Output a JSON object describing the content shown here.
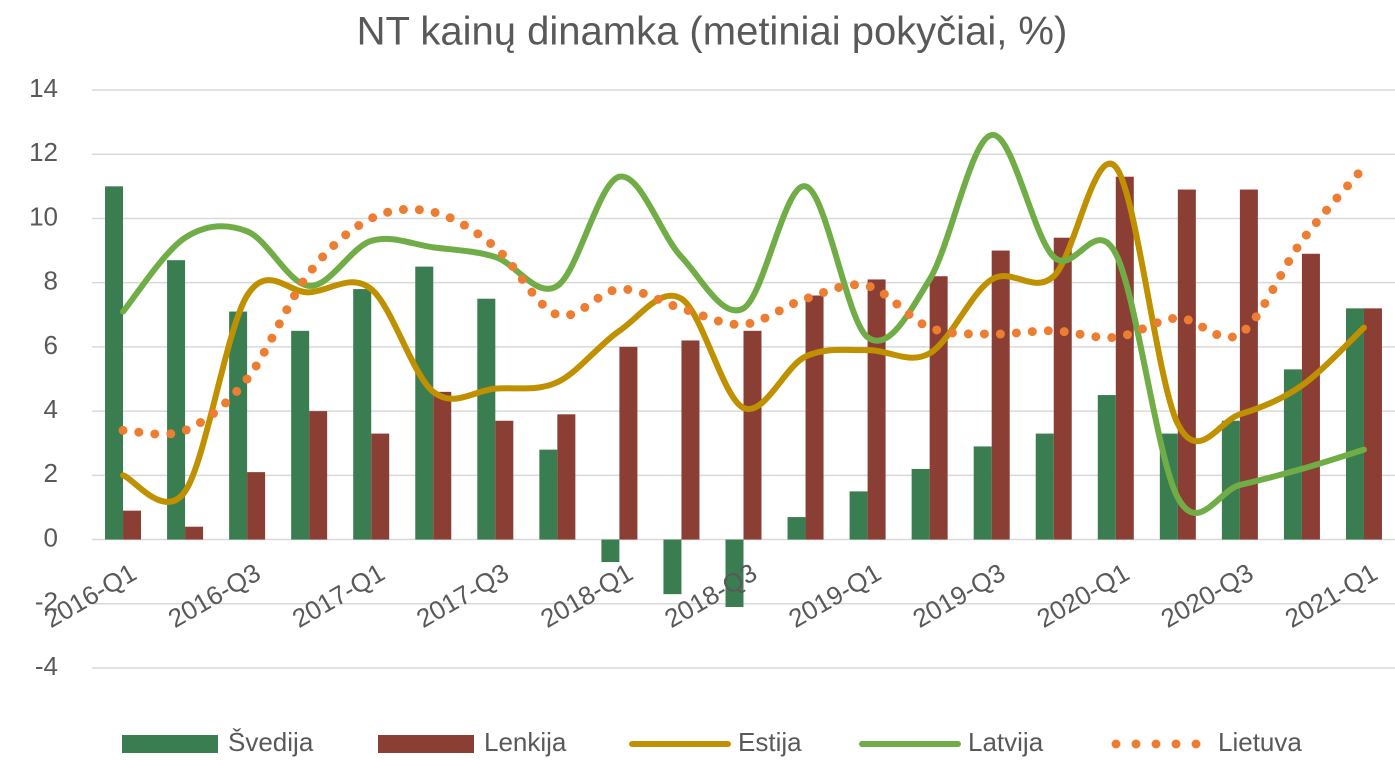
{
  "chart_data": {
    "type": "bar",
    "title": "NT kainų dinamka (metiniai pokyčiai, %)",
    "categories": [
      "2016-Q1",
      null,
      "2016-Q3",
      null,
      "2017-Q1",
      null,
      "2017-Q3",
      null,
      "2018-Q1",
      null,
      "2018-Q3",
      null,
      "2019-Q1",
      null,
      "2019-Q3",
      null,
      "2020-Q1",
      null,
      "2020-Q3",
      null,
      "2021-Q1"
    ],
    "ylim": [
      -4,
      14
    ],
    "yticks": [
      -4,
      -2,
      0,
      2,
      4,
      6,
      8,
      10,
      12,
      14
    ],
    "grid": true,
    "legend": "bottom",
    "series": [
      {
        "name": "Švedija",
        "type": "bar",
        "color": "#3a7d50",
        "values": [
          11,
          8.7,
          7.1,
          6.5,
          7.8,
          8.5,
          7.5,
          2.8,
          -0.7,
          -1.7,
          -2.1,
          0.7,
          1.5,
          2.2,
          2.9,
          3.3,
          4.5,
          3.3,
          3.7,
          5.3,
          7.2
        ]
      },
      {
        "name": "Lenkija",
        "type": "bar",
        "color": "#8b3f34",
        "values": [
          0.9,
          0.4,
          2.1,
          4.0,
          3.3,
          4.6,
          3.7,
          3.9,
          6.0,
          6.2,
          6.5,
          7.6,
          8.1,
          8.2,
          9.0,
          9.4,
          11.3,
          10.9,
          10.9,
          8.9,
          7.2
        ]
      },
      {
        "name": "Estija",
        "type": "line",
        "color": "#bf9000",
        "values": [
          2.0,
          1.5,
          7.6,
          7.7,
          7.8,
          4.6,
          4.7,
          4.9,
          6.5,
          7.5,
          4.1,
          5.7,
          5.9,
          5.8,
          8.1,
          8.2,
          11.6,
          3.6,
          3.9,
          4.8,
          6.6
        ]
      },
      {
        "name": "Latvija",
        "type": "line",
        "color": "#70ad47",
        "values": [
          7.1,
          9.4,
          9.6,
          7.9,
          9.3,
          9.1,
          8.8,
          7.9,
          11.3,
          8.8,
          7.2,
          11.0,
          6.3,
          8.1,
          12.6,
          8.8,
          8.9,
          1.3,
          1.7,
          2.2,
          2.8
        ]
      },
      {
        "name": "Lietuva",
        "type": "line",
        "line_style": "dotted",
        "color": "#ed7d31",
        "values": [
          3.4,
          3.4,
          5.0,
          8.3,
          10.0,
          10.2,
          9.1,
          7.0,
          7.8,
          7.2,
          6.7,
          7.5,
          7.9,
          6.6,
          6.4,
          6.5,
          6.3,
          6.9,
          6.4,
          9.3,
          11.6
        ]
      }
    ]
  }
}
